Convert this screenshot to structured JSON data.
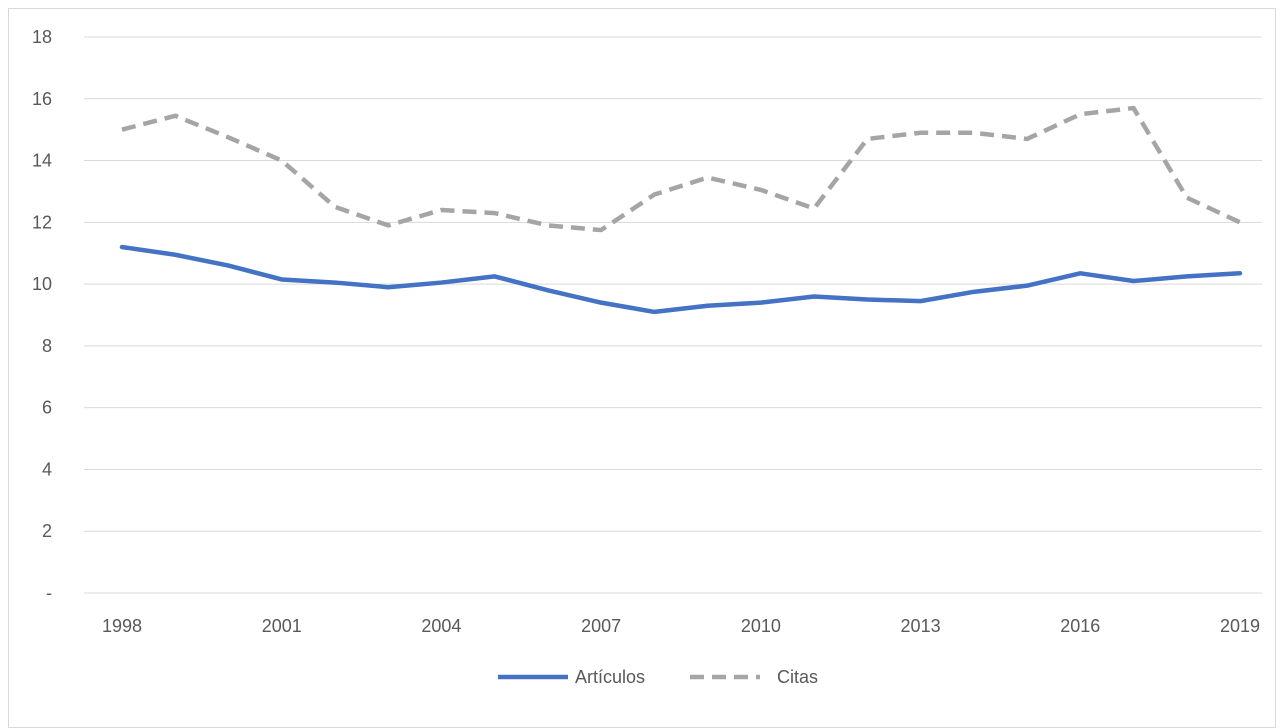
{
  "chart_data": {
    "type": "line",
    "title": "",
    "xlabel": "",
    "ylabel": "",
    "ylim": [
      0,
      18
    ],
    "yticks": [
      {
        "value": 0,
        "label": "-"
      },
      {
        "value": 2,
        "label": "2"
      },
      {
        "value": 4,
        "label": "4"
      },
      {
        "value": 6,
        "label": "6"
      },
      {
        "value": 8,
        "label": "8"
      },
      {
        "value": 10,
        "label": "10"
      },
      {
        "value": 12,
        "label": "12"
      },
      {
        "value": 14,
        "label": "14"
      },
      {
        "value": 16,
        "label": "16"
      },
      {
        "value": 18,
        "label": "18"
      }
    ],
    "x": [
      1998,
      1999,
      2000,
      2001,
      2002,
      2003,
      2004,
      2005,
      2006,
      2007,
      2008,
      2009,
      2010,
      2011,
      2012,
      2013,
      2014,
      2015,
      2016,
      2017,
      2018,
      2019
    ],
    "xtick_labels": [
      "1998",
      "2001",
      "2004",
      "2007",
      "2010",
      "2013",
      "2016",
      "2019"
    ],
    "grid": true,
    "legend_position": "bottom-center",
    "series": [
      {
        "name": "Artículos",
        "color": "#4472c4",
        "style": "solid",
        "values": [
          11.2,
          10.95,
          10.6,
          10.15,
          10.05,
          9.9,
          10.05,
          10.25,
          9.8,
          9.4,
          9.1,
          9.3,
          9.4,
          9.6,
          9.5,
          9.45,
          9.75,
          9.95,
          10.35,
          10.1,
          10.25,
          10.35
        ]
      },
      {
        "name": "Citas",
        "color": "#a5a5a5",
        "style": "dashed",
        "values": [
          15.0,
          15.45,
          14.75,
          14.0,
          12.5,
          11.9,
          12.4,
          12.3,
          11.9,
          11.75,
          12.9,
          13.45,
          13.05,
          12.45,
          14.7,
          14.9,
          14.9,
          14.7,
          15.5,
          15.7,
          12.8,
          12.0
        ]
      }
    ]
  }
}
